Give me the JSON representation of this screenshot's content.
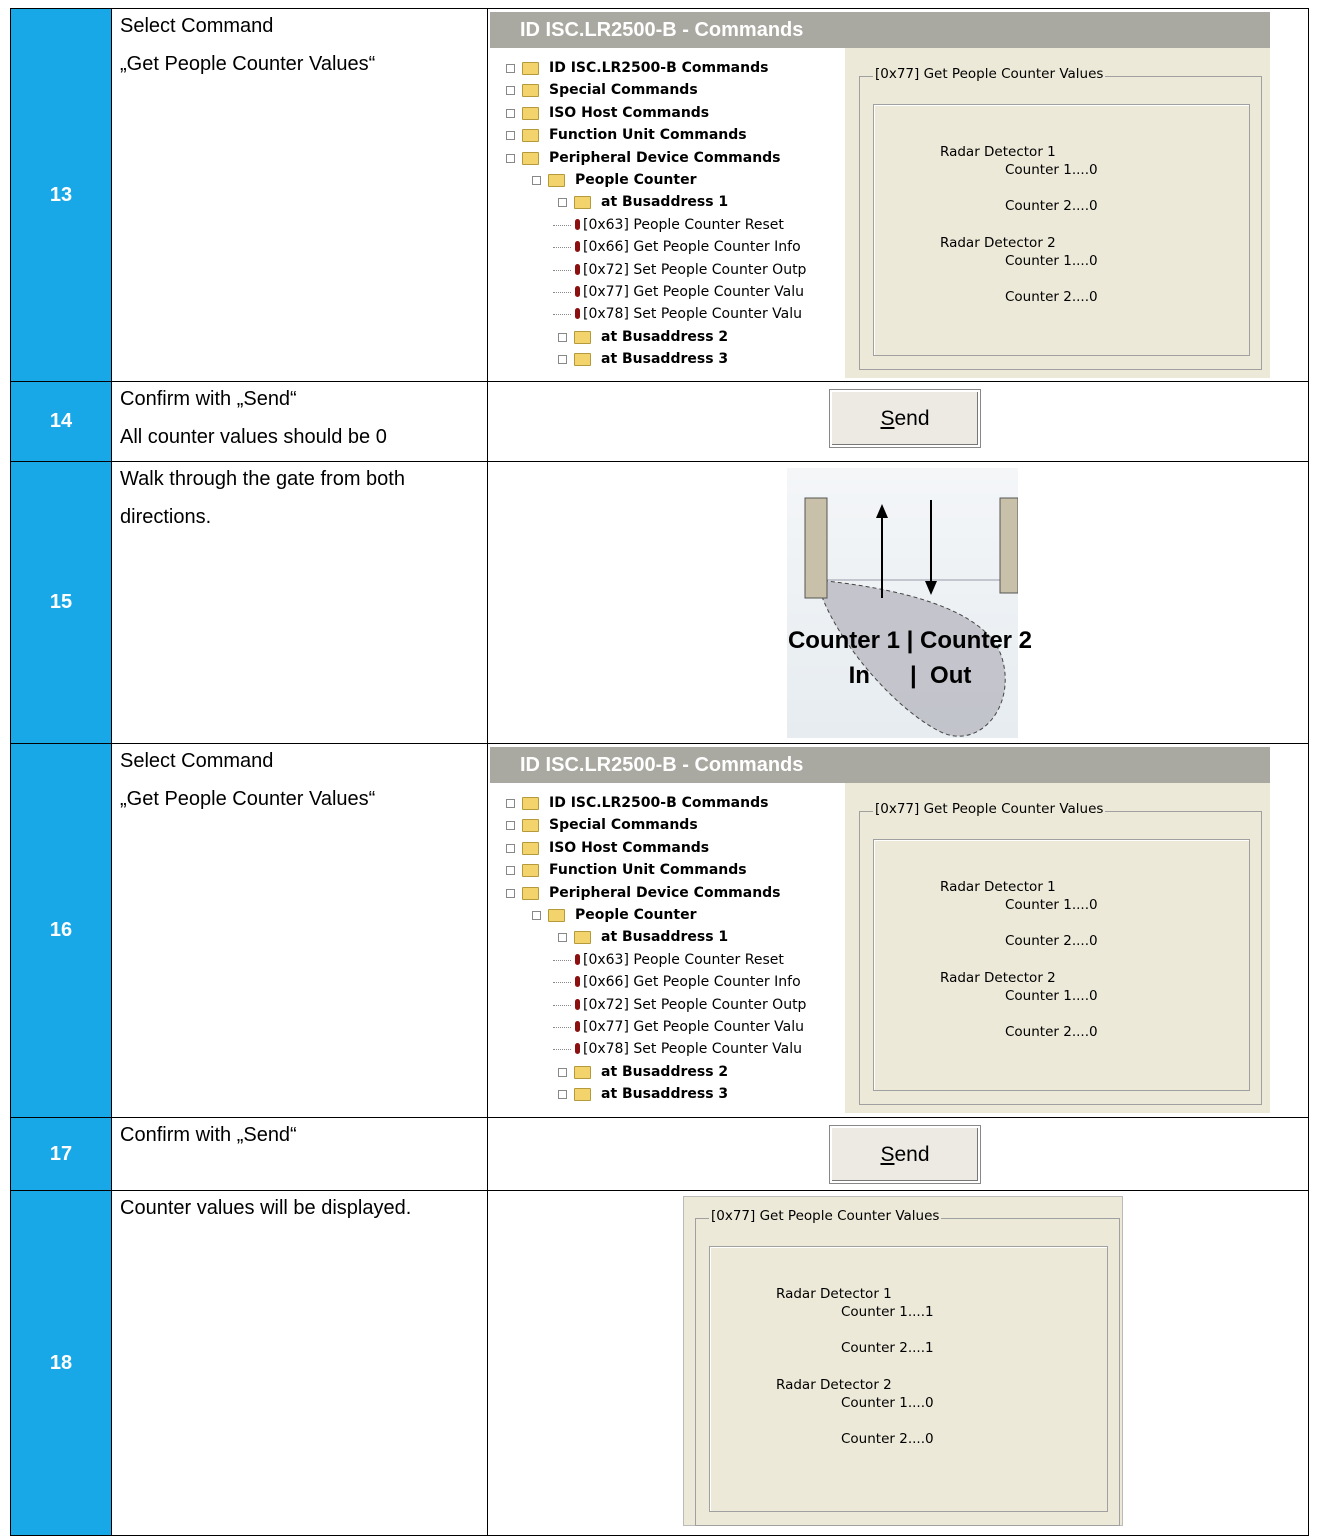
{
  "steps": [
    {
      "number": "13",
      "text": [
        "Select Command",
        "„Get People Counter Values“"
      ],
      "commands_window": {
        "title": "ID ISC.LR2500-B - Commands",
        "tree": [
          {
            "label": "ID ISC.LR2500-B Commands"
          },
          {
            "label": "Special Commands"
          },
          {
            "label": "ISO Host Commands"
          },
          {
            "label": "Function Unit Commands"
          },
          {
            "label": "Peripheral Device Commands",
            "children": [
              {
                "label": "People Counter",
                "children": [
                  {
                    "label": "at Busaddress 1",
                    "children": [
                      {
                        "label": "[0x63] People Counter Reset"
                      },
                      {
                        "label": "[0x66] Get People Counter Info"
                      },
                      {
                        "label": "[0x72] Set People Counter Outp"
                      },
                      {
                        "label": "[0x77] Get People Counter Valu"
                      },
                      {
                        "label": "[0x78] Set People Counter Valu"
                      }
                    ]
                  },
                  {
                    "label": "at Busaddress 2"
                  },
                  {
                    "label": "at Busaddress 3"
                  }
                ]
              }
            ]
          }
        ],
        "panel": {
          "title": "[0x77] Get People Counter Values",
          "detectors": [
            {
              "name": "Radar Detector 1",
              "counters": [
                "Counter 1....0",
                "Counter 2....0"
              ]
            },
            {
              "name": "Radar Detector 2",
              "counters": [
                "Counter 1....0",
                "Counter 2....0"
              ]
            }
          ]
        }
      }
    },
    {
      "number": "14",
      "text": [
        "Confirm with „Send“",
        "All counter values should be 0"
      ],
      "button": {
        "label": "Send"
      }
    },
    {
      "number": "15",
      "text": [
        "Walk through the gate from both",
        "directions."
      ],
      "diagram": {
        "lines": [
          "Counter 1 | Counter 2",
          "In      |  Out"
        ]
      }
    },
    {
      "number": "16",
      "text": [
        "Select Command",
        "„Get People Counter Values“"
      ],
      "commands_window": {
        "title": "ID ISC.LR2500-B - Commands",
        "tree": [
          {
            "label": "ID ISC.LR2500-B Commands"
          },
          {
            "label": "Special Commands"
          },
          {
            "label": "ISO Host Commands"
          },
          {
            "label": "Function Unit Commands"
          },
          {
            "label": "Peripheral Device Commands",
            "children": [
              {
                "label": "People Counter",
                "children": [
                  {
                    "label": "at Busaddress 1",
                    "children": [
                      {
                        "label": "[0x63] People Counter Reset"
                      },
                      {
                        "label": "[0x66] Get People Counter Info"
                      },
                      {
                        "label": "[0x72] Set People Counter Outp"
                      },
                      {
                        "label": "[0x77] Get People Counter Valu"
                      },
                      {
                        "label": "[0x78] Set People Counter Valu"
                      }
                    ]
                  },
                  {
                    "label": "at Busaddress 2"
                  },
                  {
                    "label": "at Busaddress 3"
                  }
                ]
              }
            ]
          }
        ],
        "panel": {
          "title": "[0x77] Get People Counter Values",
          "detectors": [
            {
              "name": "Radar Detector 1",
              "counters": [
                "Counter 1....0",
                "Counter 2....0"
              ]
            },
            {
              "name": "Radar Detector 2",
              "counters": [
                "Counter 1....0",
                "Counter 2....0"
              ]
            }
          ]
        }
      }
    },
    {
      "number": "17",
      "text": [
        "Confirm with „Send“"
      ],
      "button": {
        "label": "Send"
      }
    },
    {
      "number": "18",
      "text": [
        "Counter values will be displayed."
      ],
      "panel": {
        "title": "[0x77] Get People Counter Values",
        "detectors": [
          {
            "name": "Radar Detector 1",
            "counters": [
              "Counter 1....1",
              "Counter 2....1"
            ]
          },
          {
            "name": "Radar Detector 2",
            "counters": [
              "Counter 1....0",
              "Counter 2....0"
            ]
          }
        ]
      }
    }
  ]
}
